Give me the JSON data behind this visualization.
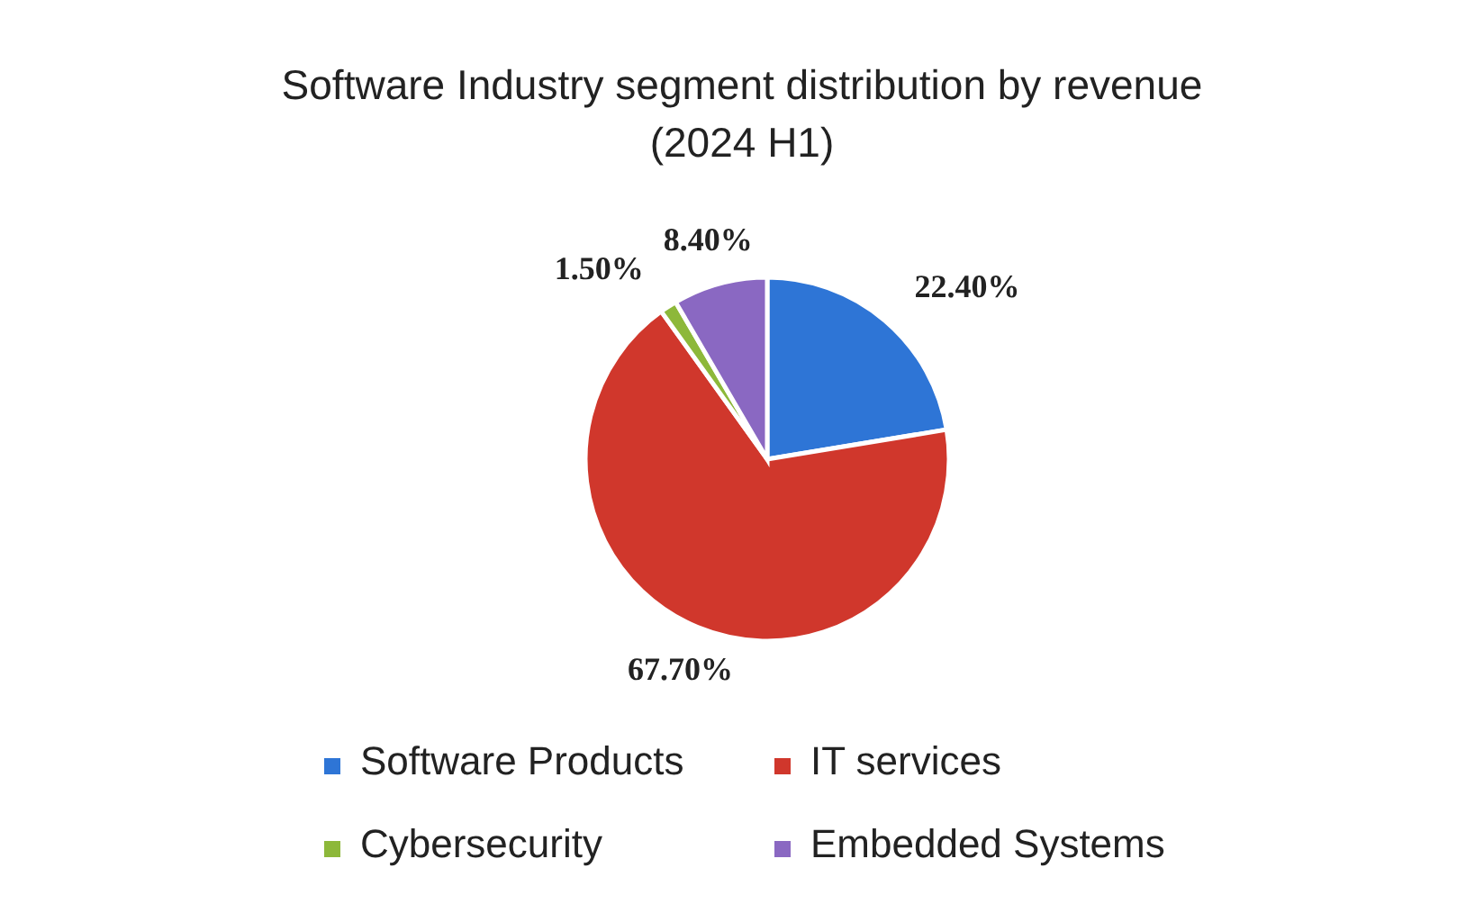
{
  "chart_data": {
    "type": "pie",
    "title": "Software Industry segment distribution by revenue\n(2024 H1)",
    "categories": [
      "Software Products",
      "IT services",
      "Cybersecurity",
      "Embedded Systems"
    ],
    "values": [
      22.4,
      67.7,
      1.5,
      8.4
    ],
    "value_labels": [
      "22.40%",
      "67.70%",
      "1.50%",
      "8.40%"
    ],
    "colors": [
      "#2e75d6",
      "#d0372c",
      "#8db83a",
      "#8a68c2"
    ],
    "legend": "bottom"
  }
}
